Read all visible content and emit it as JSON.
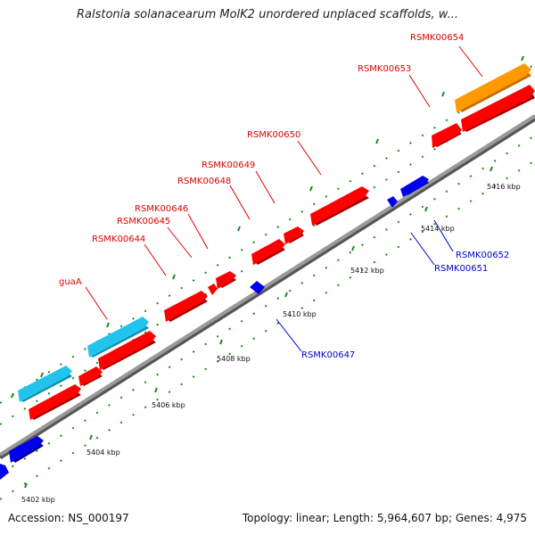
{
  "title": "Ralstonia solanacearum MolK2 unordered unplaced scaffolds, w...",
  "footer": {
    "accession": "Accession: NS_000197",
    "summary": "Topology: linear; Length: 5,964,607 bp; Genes: 4,975"
  },
  "colors": {
    "red": "#ff0000",
    "blue": "#0000ee",
    "cyan": "#22c4ee",
    "orange": "#ff9900",
    "backbone": "#888888",
    "tick": "#1a8a1a",
    "label_red": "#dd0000",
    "label_blue": "#0000cc"
  },
  "scale": {
    "unit": "kbp",
    "labels": [
      "5402 kbp",
      "5404 kbp",
      "5406 kbp",
      "5408 kbp",
      "5410 kbp",
      "5412 kbp",
      "5414 kbp",
      "5416 kbp"
    ]
  },
  "gene_labels": [
    {
      "text": "RSMK00654",
      "color": "red"
    },
    {
      "text": "RSMK00653",
      "color": "red"
    },
    {
      "text": "RSMK00650",
      "color": "red"
    },
    {
      "text": "RSMK00649",
      "color": "red"
    },
    {
      "text": "RSMK00648",
      "color": "red"
    },
    {
      "text": "RSMK00646",
      "color": "red"
    },
    {
      "text": "RSMK00645",
      "color": "red"
    },
    {
      "text": "RSMK00644",
      "color": "red"
    },
    {
      "text": "guaA",
      "color": "red"
    },
    {
      "text": "RSMK00652",
      "color": "blue"
    },
    {
      "text": "RSMK00651",
      "color": "blue"
    },
    {
      "text": "RSMK00647",
      "color": "blue"
    }
  ],
  "features": [
    {
      "name": "RSMK00654",
      "color": "orange"
    },
    {
      "name": "RSMK00653",
      "color": "red"
    },
    {
      "name": "RSMK00650",
      "color": "red"
    },
    {
      "name": "RSMK00649",
      "color": "red"
    },
    {
      "name": "RSMK00648",
      "color": "red"
    },
    {
      "name": "RSMK00646",
      "color": "red"
    },
    {
      "name": "RSMK00645",
      "color": "red"
    },
    {
      "name": "RSMK00644",
      "color": "red"
    },
    {
      "name": "guaA",
      "color": "cyan"
    },
    {
      "name": "RSMK00652",
      "color": "blue"
    },
    {
      "name": "RSMK00651",
      "color": "blue"
    },
    {
      "name": "RSMK00647",
      "color": "blue"
    }
  ]
}
